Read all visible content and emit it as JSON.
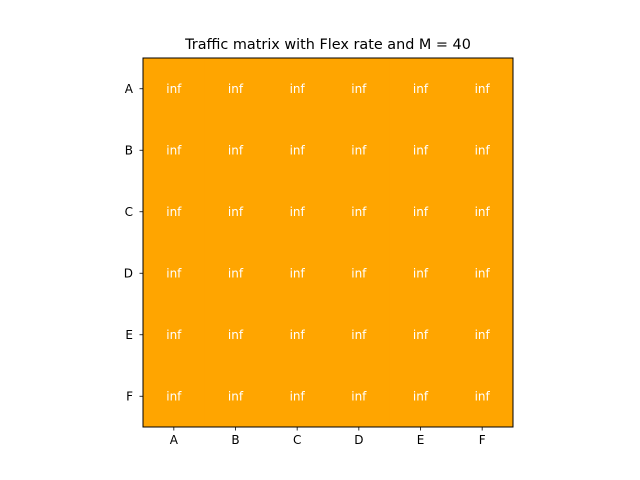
{
  "chart_data": {
    "type": "heatmap",
    "title": "Traffic matrix with Flex rate and M = 40",
    "xlabel": "",
    "ylabel": "",
    "x_categories": [
      "A",
      "B",
      "C",
      "D",
      "E",
      "F"
    ],
    "y_categories": [
      "A",
      "B",
      "C",
      "D",
      "E",
      "F"
    ],
    "values": [
      [
        "inf",
        "inf",
        "inf",
        "inf",
        "inf",
        "inf"
      ],
      [
        "inf",
        "inf",
        "inf",
        "inf",
        "inf",
        "inf"
      ],
      [
        "inf",
        "inf",
        "inf",
        "inf",
        "inf",
        "inf"
      ],
      [
        "inf",
        "inf",
        "inf",
        "inf",
        "inf",
        "inf"
      ],
      [
        "inf",
        "inf",
        "inf",
        "inf",
        "inf",
        "inf"
      ],
      [
        "inf",
        "inf",
        "inf",
        "inf",
        "inf",
        "inf"
      ]
    ],
    "cell_color": "#ffa500",
    "text_color": "#ffffff",
    "grid": false,
    "legend": "none"
  }
}
